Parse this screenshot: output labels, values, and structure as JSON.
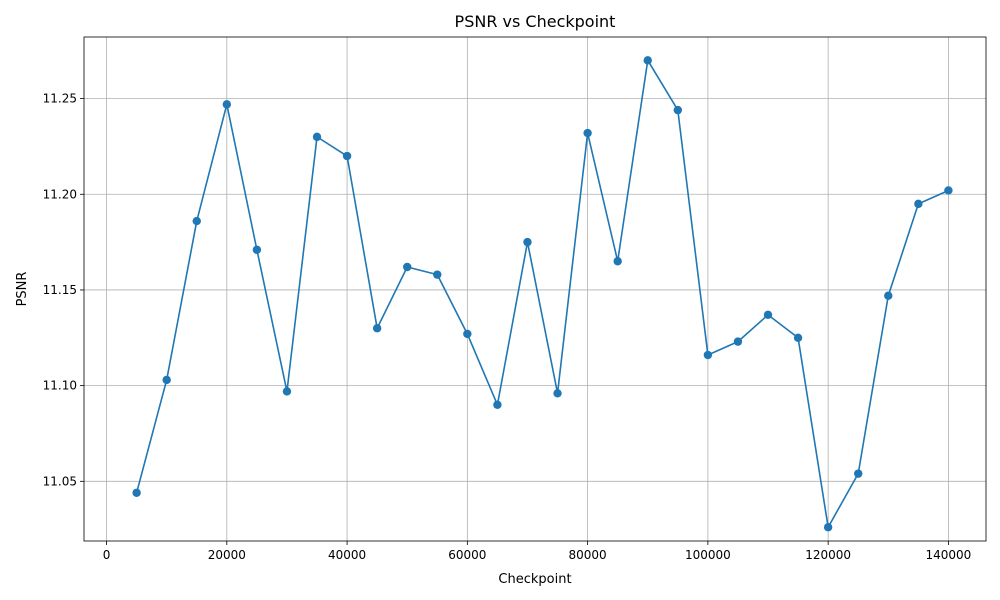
{
  "chart_data": {
    "type": "line",
    "title": "PSNR vs Checkpoint",
    "xlabel": "Checkpoint",
    "ylabel": "PSNR",
    "xlim": [
      -3750,
      146250
    ],
    "ylim": [
      11.0188,
      11.2822
    ],
    "xticks": [
      0,
      20000,
      40000,
      60000,
      80000,
      100000,
      120000,
      140000
    ],
    "yticks": [
      11.05,
      11.1,
      11.15,
      11.2,
      11.25
    ],
    "ytick_labels": [
      "11.05",
      "11.10",
      "11.15",
      "11.20",
      "11.25"
    ],
    "grid": true,
    "markers": true,
    "colors": {
      "line": "#1f77b4"
    },
    "series": [
      {
        "x": [
          5000,
          10000,
          15000,
          20000,
          25000,
          30000,
          35000,
          40000,
          45000,
          50000,
          55000,
          60000,
          65000,
          70000,
          75000,
          80000,
          85000,
          90000,
          95000,
          100000,
          105000,
          110000,
          115000,
          120000,
          125000,
          130000,
          135000,
          140000
        ],
        "values": [
          11.044,
          11.103,
          11.186,
          11.247,
          11.171,
          11.097,
          11.23,
          11.22,
          11.13,
          11.162,
          11.158,
          11.127,
          11.09,
          11.175,
          11.096,
          11.232,
          11.165,
          11.27,
          11.244,
          11.116,
          11.123,
          11.137,
          11.125,
          11.026,
          11.054,
          11.147,
          11.195,
          11.202
        ]
      }
    ]
  }
}
